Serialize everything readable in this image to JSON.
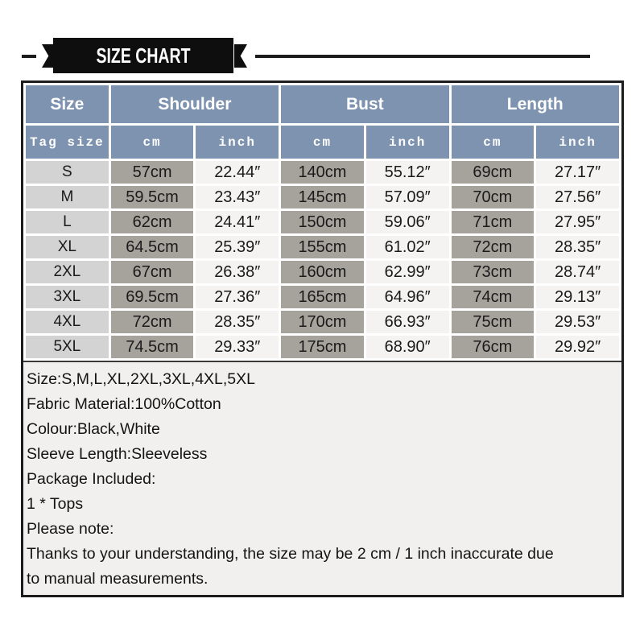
{
  "banner": {
    "title": "SIZE CHART"
  },
  "colors": {
    "banner_black": "#0e0e0e",
    "header_blue": "#7e93af",
    "size_col_gray": "#d3d3d3",
    "cm_col_gray": "#a6a29c",
    "inch_col_light": "#f4f3f1",
    "notes_bg": "#f1f0ee",
    "outer_border": "#1c1c1c"
  },
  "table": {
    "groups": [
      {
        "label": "Size",
        "span": 1
      },
      {
        "label": "Shoulder",
        "span": 2
      },
      {
        "label": "Bust",
        "span": 2
      },
      {
        "label": "Length",
        "span": 2
      }
    ],
    "subheader": [
      "Tag size",
      "cm",
      "inch",
      "cm",
      "inch",
      "cm",
      "inch"
    ],
    "rows": [
      [
        "S",
        "57cm",
        "22.44″",
        "140cm",
        "55.12″",
        "69cm",
        "27.17″"
      ],
      [
        "M",
        "59.5cm",
        "23.43″",
        "145cm",
        "57.09″",
        "70cm",
        "27.56″"
      ],
      [
        "L",
        "62cm",
        "24.41″",
        "150cm",
        "59.06″",
        "71cm",
        "27.95″"
      ],
      [
        "XL",
        "64.5cm",
        "25.39″",
        "155cm",
        "61.02″",
        "72cm",
        "28.35″"
      ],
      [
        "2XL",
        "67cm",
        "26.38″",
        "160cm",
        "62.99″",
        "73cm",
        "28.74″"
      ],
      [
        "3XL",
        "69.5cm",
        "27.36″",
        "165cm",
        "64.96″",
        "74cm",
        "29.13″"
      ],
      [
        "4XL",
        "72cm",
        "28.35″",
        "170cm",
        "66.93″",
        "75cm",
        "29.53″"
      ],
      [
        "5XL",
        "74.5cm",
        "29.33″",
        "175cm",
        "68.90″",
        "76cm",
        "29.92″"
      ]
    ]
  },
  "notes": {
    "lines": [
      "Size:S,M,L,XL,2XL,3XL,4XL,5XL",
      "Fabric Material:100%Cotton",
      "Colour:Black,White",
      "Sleeve Length:Sleeveless",
      "Package Included:",
      "1 * Tops",
      "Please note:",
      "Thanks to your understanding, the size may be 2 cm / 1 inch inaccurate due",
      "to manual measurements."
    ]
  }
}
